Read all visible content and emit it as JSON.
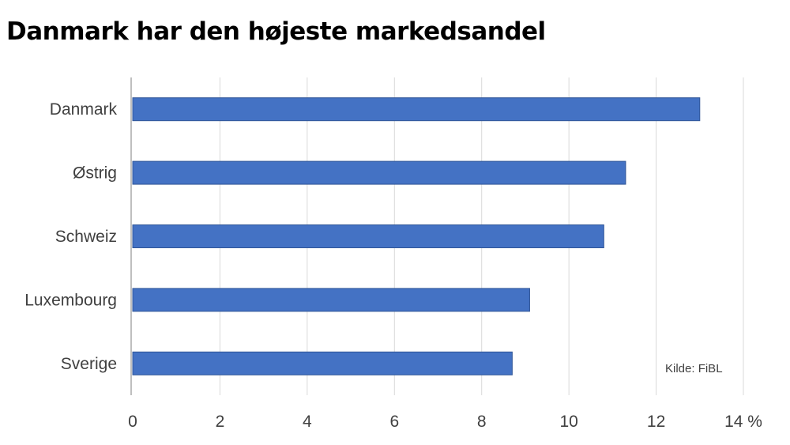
{
  "chart_data": {
    "type": "bar",
    "orientation": "horizontal",
    "title": "Danmark har den højeste markedsandel",
    "categories": [
      "Danmark",
      "Østrig",
      "Schweiz",
      "Luxembourg",
      "Sverige"
    ],
    "values": [
      13.0,
      11.3,
      10.8,
      9.1,
      8.7
    ],
    "xlim": [
      0,
      14
    ],
    "xticks": [
      "0",
      "2",
      "4",
      "6",
      "8",
      "10",
      "12",
      "14 %"
    ],
    "xlabel": "",
    "ylabel": "",
    "grid": true,
    "source_note": "Kilde: FiBL",
    "colors": {
      "bar": "#4472C4",
      "bar_stroke": "#2F5597",
      "grid": "#D9D9D9",
      "text": "#404040"
    }
  }
}
